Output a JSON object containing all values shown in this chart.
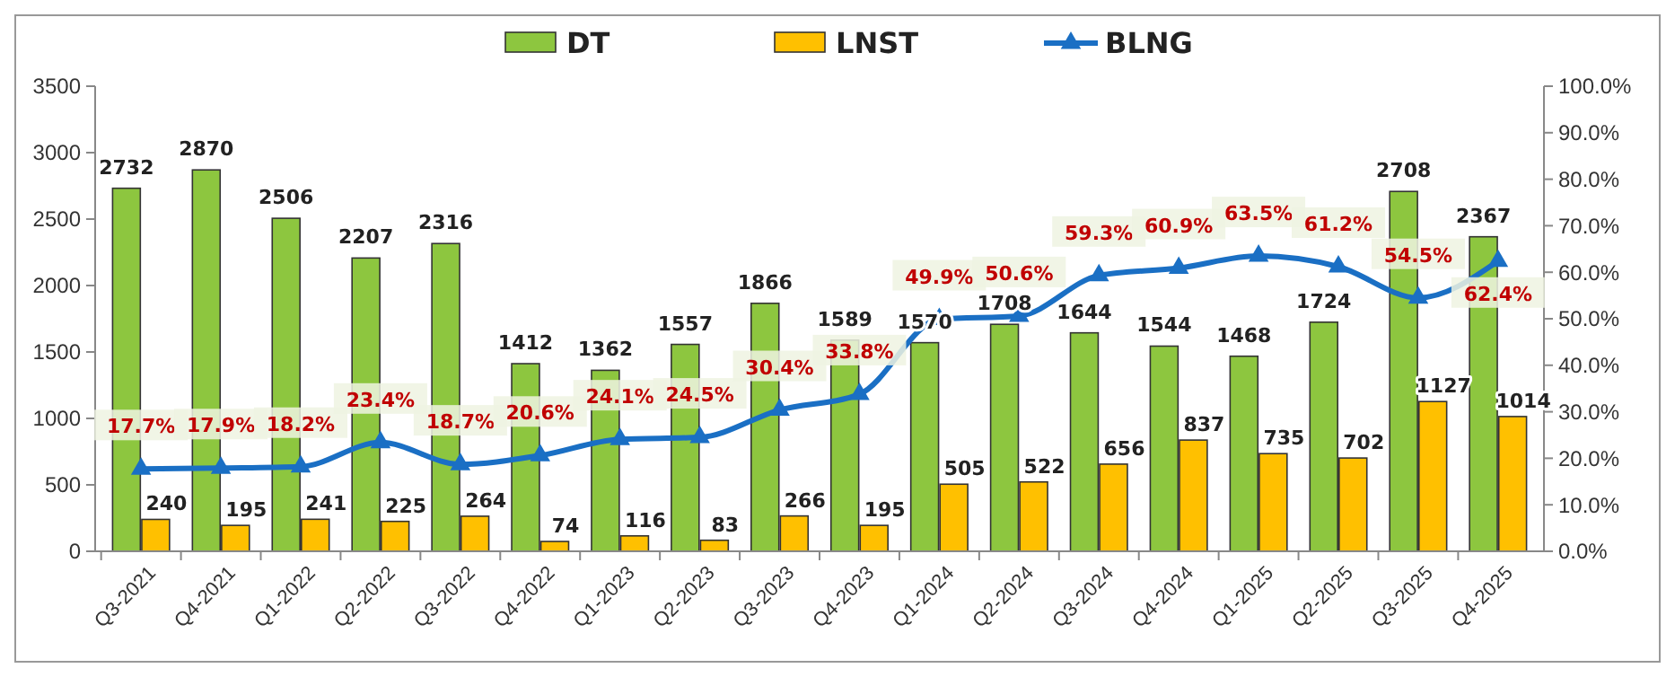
{
  "chart_data": {
    "type": "bar",
    "categories": [
      "Q3-2021",
      "Q4-2021",
      "Q1-2022",
      "Q2-2022",
      "Q3-2022",
      "Q4-2022",
      "Q1-2023",
      "Q2-2023",
      "Q3-2023",
      "Q4-2023",
      "Q1-2024",
      "Q2-2024",
      "Q3-2024",
      "Q4-2024",
      "Q1-2025",
      "Q2-2025",
      "Q3-2025",
      "Q4-2025"
    ],
    "series": [
      {
        "name": "DT",
        "color": "#8dc63f",
        "values": [
          2732,
          2870,
          2506,
          2207,
          2316,
          1412,
          1362,
          1557,
          1866,
          1589,
          1570,
          1708,
          1644,
          1544,
          1468,
          1724,
          2708,
          2367
        ],
        "value_labels": [
          "2732",
          "2870",
          "2506",
          "2207",
          "2316",
          "1412",
          "1362",
          "1557",
          "1866",
          "1589",
          "1570",
          "1708",
          "1644",
          "1544",
          "1468",
          "1724",
          "2708",
          "2367"
        ]
      },
      {
        "name": "LNST",
        "color": "#ffc000",
        "values": [
          240,
          195,
          241,
          225,
          264,
          74,
          116,
          83,
          266,
          195,
          505,
          522,
          656,
          837,
          735,
          702,
          1127,
          1014
        ],
        "value_labels": [
          "240",
          "195",
          "241",
          "225",
          "264",
          "74",
          "116",
          "83",
          "266",
          "195",
          "505",
          "522",
          "656",
          "837",
          "735",
          "702",
          "1127",
          "1014"
        ]
      },
      {
        "name": "BLNG",
        "type": "line",
        "axis": "y2",
        "color": "#1a6fc4",
        "values": [
          17.7,
          17.9,
          18.2,
          23.4,
          18.7,
          20.6,
          24.1,
          24.5,
          30.4,
          33.8,
          49.9,
          50.6,
          59.3,
          60.9,
          63.5,
          61.2,
          54.5,
          62.4
        ],
        "value_labels": [
          "17.7%",
          "17.9%",
          "18.2%",
          "23.4%",
          "18.7%",
          "20.6%",
          "24.1%",
          "24.5%",
          "30.4%",
          "33.8%",
          "49.9%",
          "50.6%",
          "59.3%",
          "60.9%",
          "63.5%",
          "61.2%",
          "54.5%",
          "62.4%"
        ]
      }
    ],
    "ylim": [
      0,
      3500
    ],
    "yticks": [
      0,
      500,
      1000,
      1500,
      2000,
      2500,
      3000,
      3500
    ],
    "y2lim": [
      0,
      100
    ],
    "y2ticks": [
      {
        "value": 0,
        "label": "0.0%"
      },
      {
        "value": 10,
        "label": "10.0%"
      },
      {
        "value": 20,
        "label": "20.0%"
      },
      {
        "value": 30,
        "label": "30.0%"
      },
      {
        "value": 40,
        "label": "40.0%"
      },
      {
        "value": 50,
        "label": "50.0%"
      },
      {
        "value": 60,
        "label": "60.0%"
      },
      {
        "value": 70,
        "label": "70.0%"
      },
      {
        "value": 80,
        "label": "80.0%"
      },
      {
        "value": 90,
        "label": "90.0%"
      },
      {
        "value": 100,
        "label": "100.0%"
      }
    ],
    "legend": "top",
    "marker": "triangle",
    "line_style": "solid",
    "grid": false
  }
}
